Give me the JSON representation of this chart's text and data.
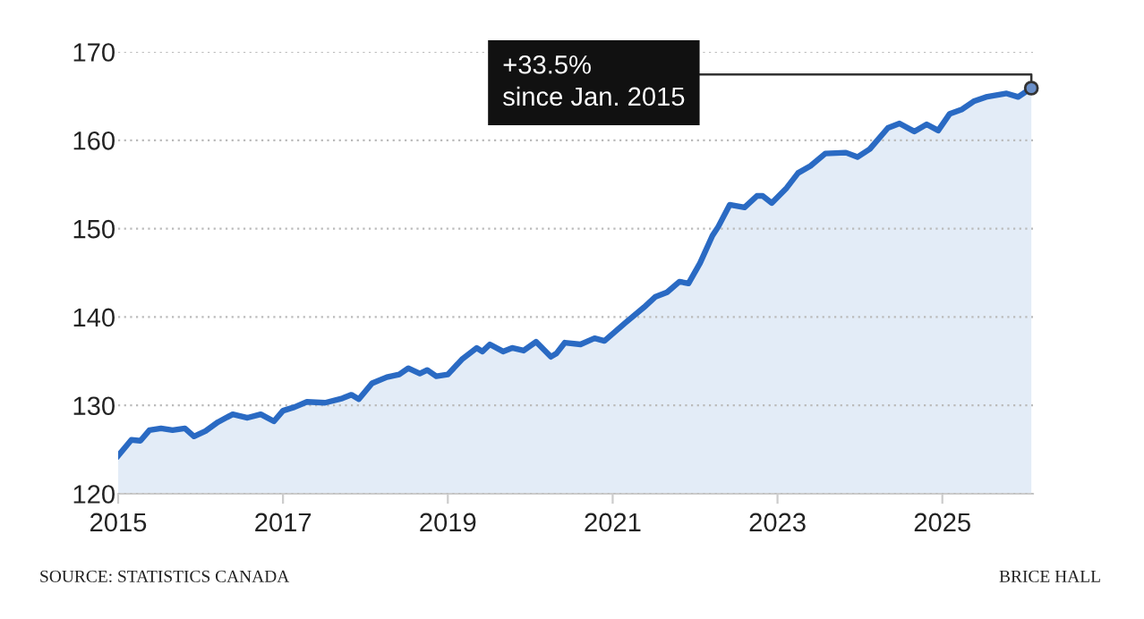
{
  "chart_data": {
    "type": "area",
    "x": [
      2015.0,
      2015.16,
      2015.27,
      2015.38,
      2015.52,
      2015.66,
      2015.81,
      2015.92,
      2016.06,
      2016.21,
      2016.39,
      2016.57,
      2016.73,
      2016.89,
      2017.0,
      2017.14,
      2017.29,
      2017.51,
      2017.72,
      2017.83,
      2017.92,
      2018.08,
      2018.26,
      2018.41,
      2018.52,
      2018.66,
      2018.75,
      2018.86,
      2019.0,
      2019.17,
      2019.35,
      2019.42,
      2019.51,
      2019.67,
      2019.78,
      2019.92,
      2020.07,
      2020.25,
      2020.32,
      2020.42,
      2020.61,
      2020.78,
      2020.9,
      2021.16,
      2021.38,
      2021.52,
      2021.66,
      2021.81,
      2021.92,
      2022.06,
      2022.21,
      2022.28,
      2022.42,
      2022.6,
      2022.75,
      2022.82,
      2022.93,
      2023.11,
      2023.25,
      2023.4,
      2023.58,
      2023.83,
      2023.97,
      2024.12,
      2024.34,
      2024.48,
      2024.66,
      2024.81,
      2024.95,
      2025.09,
      2025.24,
      2025.38,
      2025.53,
      2025.78,
      2025.92,
      2026.08
    ],
    "series": [
      {
        "color": "#2a6ac3",
        "values": [
          124.3,
          126.1,
          126.0,
          127.2,
          127.4,
          127.2,
          127.4,
          126.5,
          127.1,
          128.1,
          129.0,
          128.6,
          129.0,
          128.2,
          129.4,
          129.8,
          130.4,
          130.3,
          130.8,
          131.2,
          130.7,
          132.5,
          133.2,
          133.5,
          134.2,
          133.6,
          134.0,
          133.3,
          133.5,
          135.2,
          136.5,
          136.1,
          136.9,
          136.1,
          136.5,
          136.2,
          137.2,
          135.5,
          135.9,
          137.1,
          136.9,
          137.6,
          137.3,
          139.4,
          141.1,
          142.3,
          142.8,
          144.0,
          143.8,
          146.1,
          149.2,
          150.2,
          152.7,
          152.4,
          153.7,
          153.7,
          152.9,
          154.6,
          156.3,
          157.1,
          158.5,
          158.6,
          158.1,
          159.0,
          161.4,
          161.9,
          161.0,
          161.8,
          161.1,
          163.0,
          163.5,
          164.4,
          164.9,
          165.3,
          164.9,
          165.9
        ]
      }
    ],
    "xlim": [
      2015,
      2026.1
    ],
    "ylim": [
      120,
      170
    ],
    "xticks": [
      2015,
      2017,
      2019,
      2021,
      2023,
      2025
    ],
    "yticks": [
      120,
      130,
      140,
      150,
      160,
      170
    ],
    "grid": "y",
    "annotations": [
      {
        "text": "+33.5%\nsince Jan. 2015",
        "x": 2026.08,
        "y": 165.9
      },
      "SOURCE: STATISTICS CANADA",
      "BRICE HALL"
    ]
  }
}
